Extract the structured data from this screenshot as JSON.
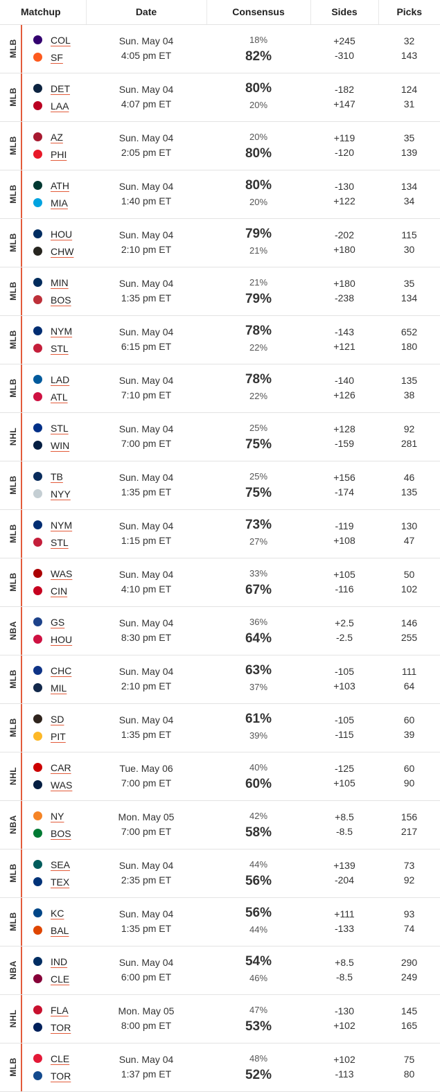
{
  "headers": {
    "matchup": "Matchup",
    "date": "Date",
    "consensus": "Consensus",
    "sides": "Sides",
    "picks": "Picks"
  },
  "rows": [
    {
      "league": "MLB",
      "away": {
        "abbr": "COL",
        "logo": "rockies-logo-icon",
        "color": "#33006f"
      },
      "home": {
        "abbr": "SF",
        "logo": "giants-logo-icon",
        "color": "#fd5a1e"
      },
      "day": "Sun. May 04",
      "time": "4:05 pm ET",
      "away_pct": "18%",
      "home_pct": "82%",
      "away_side": "+245",
      "home_side": "-310",
      "away_picks": "32",
      "home_picks": "143"
    },
    {
      "league": "MLB",
      "away": {
        "abbr": "DET",
        "logo": "tigers-logo-icon",
        "color": "#0c2340"
      },
      "home": {
        "abbr": "LAA",
        "logo": "angels-logo-icon",
        "color": "#ba0021"
      },
      "day": "Sun. May 04",
      "time": "4:07 pm ET",
      "away_pct": "80%",
      "home_pct": "20%",
      "away_side": "-182",
      "home_side": "+147",
      "away_picks": "124",
      "home_picks": "31"
    },
    {
      "league": "MLB",
      "away": {
        "abbr": "AZ",
        "logo": "diamondbacks-logo-icon",
        "color": "#a71930"
      },
      "home": {
        "abbr": "PHI",
        "logo": "phillies-logo-icon",
        "color": "#e81828"
      },
      "day": "Sun. May 04",
      "time": "2:05 pm ET",
      "away_pct": "20%",
      "home_pct": "80%",
      "away_side": "+119",
      "home_side": "-120",
      "away_picks": "35",
      "home_picks": "139"
    },
    {
      "league": "MLB",
      "away": {
        "abbr": "ATH",
        "logo": "athletics-logo-icon",
        "color": "#003831"
      },
      "home": {
        "abbr": "MIA",
        "logo": "marlins-logo-icon",
        "color": "#00a3e0"
      },
      "day": "Sun. May 04",
      "time": "1:40 pm ET",
      "away_pct": "80%",
      "home_pct": "20%",
      "away_side": "-130",
      "home_side": "+122",
      "away_picks": "134",
      "home_picks": "34"
    },
    {
      "league": "MLB",
      "away": {
        "abbr": "HOU",
        "logo": "astros-logo-icon",
        "color": "#002d62"
      },
      "home": {
        "abbr": "CHW",
        "logo": "white-sox-logo-icon",
        "color": "#27251f"
      },
      "day": "Sun. May 04",
      "time": "2:10 pm ET",
      "away_pct": "79%",
      "home_pct": "21%",
      "away_side": "-202",
      "home_side": "+180",
      "away_picks": "115",
      "home_picks": "30"
    },
    {
      "league": "MLB",
      "away": {
        "abbr": "MIN",
        "logo": "twins-logo-icon",
        "color": "#002b5c"
      },
      "home": {
        "abbr": "BOS",
        "logo": "red-sox-logo-icon",
        "color": "#bd3039"
      },
      "day": "Sun. May 04",
      "time": "1:35 pm ET",
      "away_pct": "21%",
      "home_pct": "79%",
      "away_side": "+180",
      "home_side": "-238",
      "away_picks": "35",
      "home_picks": "134"
    },
    {
      "league": "MLB",
      "away": {
        "abbr": "NYM",
        "logo": "mets-logo-icon",
        "color": "#002d72"
      },
      "home": {
        "abbr": "STL",
        "logo": "cardinals-logo-icon",
        "color": "#c41e3a"
      },
      "day": "Sun. May 04",
      "time": "6:15 pm ET",
      "away_pct": "78%",
      "home_pct": "22%",
      "away_side": "-143",
      "home_side": "+121",
      "away_picks": "652",
      "home_picks": "180"
    },
    {
      "league": "MLB",
      "away": {
        "abbr": "LAD",
        "logo": "dodgers-logo-icon",
        "color": "#005a9c"
      },
      "home": {
        "abbr": "ATL",
        "logo": "braves-logo-icon",
        "color": "#ce1141"
      },
      "day": "Sun. May 04",
      "time": "7:10 pm ET",
      "away_pct": "78%",
      "home_pct": "22%",
      "away_side": "-140",
      "home_side": "+126",
      "away_picks": "135",
      "home_picks": "38"
    },
    {
      "league": "NHL",
      "away": {
        "abbr": "STL",
        "logo": "blues-logo-icon",
        "color": "#002f87"
      },
      "home": {
        "abbr": "WIN",
        "logo": "jets-logo-icon",
        "color": "#041e42"
      },
      "day": "Sun. May 04",
      "time": "7:00 pm ET",
      "away_pct": "25%",
      "home_pct": "75%",
      "away_side": "+128",
      "home_side": "-159",
      "away_picks": "92",
      "home_picks": "281"
    },
    {
      "league": "MLB",
      "away": {
        "abbr": "TB",
        "logo": "rays-logo-icon",
        "color": "#092c5c"
      },
      "home": {
        "abbr": "NYY",
        "logo": "yankees-logo-icon",
        "color": "#c4ced3"
      },
      "day": "Sun. May 04",
      "time": "1:35 pm ET",
      "away_pct": "25%",
      "home_pct": "75%",
      "away_side": "+156",
      "home_side": "-174",
      "away_picks": "46",
      "home_picks": "135"
    },
    {
      "league": "MLB",
      "away": {
        "abbr": "NYM",
        "logo": "mets-logo-icon",
        "color": "#002d72"
      },
      "home": {
        "abbr": "STL",
        "logo": "cardinals-logo-icon",
        "color": "#c41e3a"
      },
      "day": "Sun. May 04",
      "time": "1:15 pm ET",
      "away_pct": "73%",
      "home_pct": "27%",
      "away_side": "-119",
      "home_side": "+108",
      "away_picks": "130",
      "home_picks": "47"
    },
    {
      "league": "MLB",
      "away": {
        "abbr": "WAS",
        "logo": "nationals-logo-icon",
        "color": "#ab0003"
      },
      "home": {
        "abbr": "CIN",
        "logo": "reds-logo-icon",
        "color": "#c6011f"
      },
      "day": "Sun. May 04",
      "time": "4:10 pm ET",
      "away_pct": "33%",
      "home_pct": "67%",
      "away_side": "+105",
      "home_side": "-116",
      "away_picks": "50",
      "home_picks": "102"
    },
    {
      "league": "NBA",
      "away": {
        "abbr": "GS",
        "logo": "warriors-logo-icon",
        "color": "#1d428a"
      },
      "home": {
        "abbr": "HOU",
        "logo": "rockets-logo-icon",
        "color": "#ce1141"
      },
      "day": "Sun. May 04",
      "time": "8:30 pm ET",
      "away_pct": "36%",
      "home_pct": "64%",
      "away_side": "+2.5",
      "home_side": "-2.5",
      "away_picks": "146",
      "home_picks": "255"
    },
    {
      "league": "MLB",
      "away": {
        "abbr": "CHC",
        "logo": "cubs-logo-icon",
        "color": "#0e3386"
      },
      "home": {
        "abbr": "MIL",
        "logo": "brewers-logo-icon",
        "color": "#12284b"
      },
      "day": "Sun. May 04",
      "time": "2:10 pm ET",
      "away_pct": "63%",
      "home_pct": "37%",
      "away_side": "-105",
      "home_side": "+103",
      "away_picks": "111",
      "home_picks": "64"
    },
    {
      "league": "MLB",
      "away": {
        "abbr": "SD",
        "logo": "padres-logo-icon",
        "color": "#2f241d"
      },
      "home": {
        "abbr": "PIT",
        "logo": "pirates-logo-icon",
        "color": "#fdb827"
      },
      "day": "Sun. May 04",
      "time": "1:35 pm ET",
      "away_pct": "61%",
      "home_pct": "39%",
      "away_side": "-105",
      "home_side": "-115",
      "away_picks": "60",
      "home_picks": "39"
    },
    {
      "league": "NHL",
      "away": {
        "abbr": "CAR",
        "logo": "hurricanes-logo-icon",
        "color": "#cc0000"
      },
      "home": {
        "abbr": "WAS",
        "logo": "capitals-logo-icon",
        "color": "#041e42"
      },
      "day": "Tue. May 06",
      "time": "7:00 pm ET",
      "away_pct": "40%",
      "home_pct": "60%",
      "away_side": "-125",
      "home_side": "+105",
      "away_picks": "60",
      "home_picks": "90"
    },
    {
      "league": "NBA",
      "away": {
        "abbr": "NY",
        "logo": "knicks-logo-icon",
        "color": "#f58426"
      },
      "home": {
        "abbr": "BOS",
        "logo": "celtics-logo-icon",
        "color": "#007a33"
      },
      "day": "Mon. May 05",
      "time": "7:00 pm ET",
      "away_pct": "42%",
      "home_pct": "58%",
      "away_side": "+8.5",
      "home_side": "-8.5",
      "away_picks": "156",
      "home_picks": "217"
    },
    {
      "league": "MLB",
      "away": {
        "abbr": "SEA",
        "logo": "mariners-logo-icon",
        "color": "#005c5c"
      },
      "home": {
        "abbr": "TEX",
        "logo": "rangers-logo-icon",
        "color": "#003278"
      },
      "day": "Sun. May 04",
      "time": "2:35 pm ET",
      "away_pct": "44%",
      "home_pct": "56%",
      "away_side": "+139",
      "home_side": "-204",
      "away_picks": "73",
      "home_picks": "92"
    },
    {
      "league": "MLB",
      "away": {
        "abbr": "KC",
        "logo": "royals-logo-icon",
        "color": "#004687"
      },
      "home": {
        "abbr": "BAL",
        "logo": "orioles-logo-icon",
        "color": "#df4601"
      },
      "day": "Sun. May 04",
      "time": "1:35 pm ET",
      "away_pct": "56%",
      "home_pct": "44%",
      "away_side": "+111",
      "home_side": "-133",
      "away_picks": "93",
      "home_picks": "74"
    },
    {
      "league": "NBA",
      "away": {
        "abbr": "IND",
        "logo": "pacers-logo-icon",
        "color": "#002d62"
      },
      "home": {
        "abbr": "CLE",
        "logo": "cavaliers-logo-icon",
        "color": "#860038"
      },
      "day": "Sun. May 04",
      "time": "6:00 pm ET",
      "away_pct": "54%",
      "home_pct": "46%",
      "away_side": "+8.5",
      "home_side": "-8.5",
      "away_picks": "290",
      "home_picks": "249"
    },
    {
      "league": "NHL",
      "away": {
        "abbr": "FLA",
        "logo": "panthers-logo-icon",
        "color": "#c8102e"
      },
      "home": {
        "abbr": "TOR",
        "logo": "maple-leafs-logo-icon",
        "color": "#00205b"
      },
      "day": "Mon. May 05",
      "time": "8:00 pm ET",
      "away_pct": "47%",
      "home_pct": "53%",
      "away_side": "-130",
      "home_side": "+102",
      "away_picks": "145",
      "home_picks": "165"
    },
    {
      "league": "MLB",
      "away": {
        "abbr": "CLE",
        "logo": "guardians-logo-icon",
        "color": "#e31937"
      },
      "home": {
        "abbr": "TOR",
        "logo": "blue-jays-logo-icon",
        "color": "#134a8e"
      },
      "day": "Sun. May 04",
      "time": "1:37 pm ET",
      "away_pct": "48%",
      "home_pct": "52%",
      "away_side": "+102",
      "home_side": "-113",
      "away_picks": "75",
      "home_picks": "80"
    }
  ]
}
